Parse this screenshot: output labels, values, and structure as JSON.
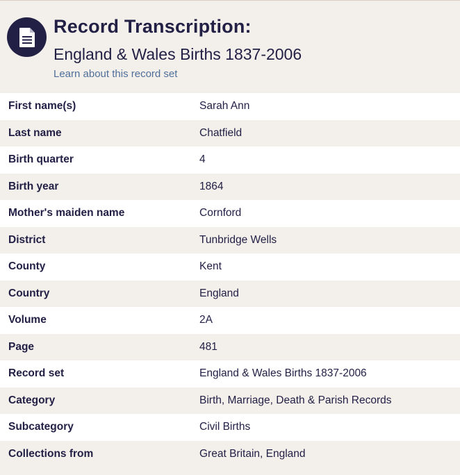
{
  "header": {
    "icon": "document-icon",
    "title": "Record Transcription:",
    "subtitle": "England & Wales Births 1837-2006",
    "learn_link": "Learn about this record set"
  },
  "colors": {
    "navy": "#232046",
    "beige": "#f3efea",
    "white": "#ffffff",
    "link": "#4f6f9a"
  },
  "rows": [
    {
      "label": "First name(s)",
      "value": "Sarah Ann"
    },
    {
      "label": "Last name",
      "value": "Chatfield"
    },
    {
      "label": "Birth quarter",
      "value": "4"
    },
    {
      "label": "Birth year",
      "value": "1864"
    },
    {
      "label": "Mother's maiden name",
      "value": "Cornford"
    },
    {
      "label": "District",
      "value": "Tunbridge Wells"
    },
    {
      "label": "County",
      "value": "Kent"
    },
    {
      "label": "Country",
      "value": "England"
    },
    {
      "label": "Volume",
      "value": "2A"
    },
    {
      "label": "Page",
      "value": "481"
    },
    {
      "label": "Record set",
      "value": "England & Wales Births 1837-2006"
    },
    {
      "label": "Category",
      "value": "Birth, Marriage, Death & Parish Records"
    },
    {
      "label": "Subcategory",
      "value": "Civil Births"
    },
    {
      "label": "Collections from",
      "value": "Great Britain, England"
    }
  ]
}
